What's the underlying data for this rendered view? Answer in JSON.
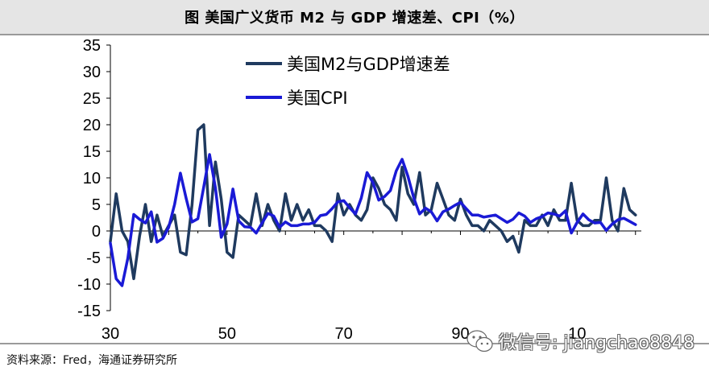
{
  "header": {
    "title": "图 美国广义货币 M2 与 GDP 增速差、CPI（%）"
  },
  "source": {
    "text": "资料来源：Fred，海通证券研究所"
  },
  "watermark": {
    "text": "微信号: jiangchao8848",
    "icon": "wechat-icon"
  },
  "colors": {
    "m2_gdp": "#1f3a5f",
    "cpi": "#1a1ad6",
    "axis": "#000000"
  },
  "chart_data": {
    "type": "line",
    "title": "图 美国广义货币 M2 与 GDP 增速差、CPI（%）",
    "xlabel": "",
    "ylabel": "",
    "xlim": [
      1930,
      2021
    ],
    "ylim": [
      -15,
      35
    ],
    "y_ticks": [
      -15,
      -10,
      -5,
      0,
      5,
      10,
      15,
      20,
      25,
      30,
      35
    ],
    "x_ticks": [
      {
        "value": 1930,
        "label": "30"
      },
      {
        "value": 1950,
        "label": "50"
      },
      {
        "value": 1970,
        "label": "70"
      },
      {
        "value": 1990,
        "label": "90"
      },
      {
        "value": 2010,
        "label": "10"
      }
    ],
    "legend_position": "top-left",
    "series": [
      {
        "name": "美国M2与GDP增速差",
        "color": "#1f3a5f",
        "x": [
          1930,
          1931,
          1932,
          1933,
          1934,
          1935,
          1936,
          1937,
          1938,
          1939,
          1940,
          1941,
          1942,
          1943,
          1944,
          1945,
          1946,
          1947,
          1948,
          1949,
          1950,
          1951,
          1952,
          1953,
          1954,
          1955,
          1956,
          1957,
          1958,
          1959,
          1960,
          1961,
          1962,
          1963,
          1964,
          1965,
          1966,
          1967,
          1968,
          1969,
          1970,
          1971,
          1972,
          1973,
          1974,
          1975,
          1976,
          1977,
          1978,
          1979,
          1980,
          1981,
          1982,
          1983,
          1984,
          1985,
          1986,
          1987,
          1988,
          1989,
          1990,
          1991,
          1992,
          1993,
          1994,
          1995,
          1996,
          1997,
          1998,
          1999,
          2000,
          2001,
          2002,
          2003,
          2004,
          2005,
          2006,
          2007,
          2008,
          2009,
          2010,
          2011,
          2012,
          2013,
          2014,
          2015,
          2016,
          2017,
          2018,
          2019,
          2020
        ],
        "values": [
          -2,
          7,
          0,
          -2,
          -9,
          -1,
          5,
          -2,
          3,
          -1,
          1,
          3,
          -4,
          -4.5,
          5,
          19,
          20,
          1,
          13,
          6,
          -4,
          -5,
          3,
          2,
          1,
          7,
          1,
          5,
          2,
          0,
          7,
          2,
          5,
          2,
          4,
          1,
          1,
          0,
          -2,
          7,
          3,
          5,
          3,
          2,
          4,
          10,
          8,
          5,
          4,
          2,
          12,
          7,
          5,
          11,
          3,
          4,
          9,
          6,
          3,
          2,
          6,
          3,
          1,
          1,
          0,
          2,
          1,
          0,
          -2,
          -1,
          -4,
          2,
          1,
          1,
          3,
          1,
          4,
          2,
          2,
          9,
          2,
          1,
          1,
          2,
          2,
          10,
          2,
          0,
          8,
          4,
          3
        ]
      },
      {
        "name": "美国CPI",
        "color": "#1a1ad6",
        "x": [
          1930,
          1931,
          1932,
          1933,
          1934,
          1935,
          1936,
          1937,
          1938,
          1939,
          1940,
          1941,
          1942,
          1943,
          1944,
          1945,
          1946,
          1947,
          1948,
          1949,
          1950,
          1951,
          1952,
          1953,
          1954,
          1955,
          1956,
          1957,
          1958,
          1959,
          1960,
          1961,
          1962,
          1963,
          1964,
          1965,
          1966,
          1967,
          1968,
          1969,
          1970,
          1971,
          1972,
          1973,
          1974,
          1975,
          1976,
          1977,
          1978,
          1979,
          1980,
          1981,
          1982,
          1983,
          1984,
          1985,
          1986,
          1987,
          1988,
          1989,
          1990,
          1991,
          1992,
          1993,
          1994,
          1995,
          1996,
          1997,
          1998,
          1999,
          2000,
          2001,
          2002,
          2003,
          2004,
          2005,
          2006,
          2007,
          2008,
          2009,
          2010,
          2011,
          2012,
          2013,
          2014,
          2015,
          2016,
          2017,
          2018,
          2019,
          2020
        ],
        "values": [
          -2.3,
          -9,
          -10.3,
          -5.1,
          3.1,
          2.2,
          1.5,
          3.6,
          -2.1,
          -1.4,
          0.7,
          5,
          10.9,
          6.1,
          1.7,
          2.3,
          8.3,
          14.4,
          8.1,
          -1.2,
          1.3,
          7.9,
          1.9,
          0.8,
          0.7,
          -0.4,
          1.5,
          3.3,
          2.8,
          0.7,
          1.7,
          1,
          1,
          1.3,
          1.3,
          1.6,
          2.9,
          3.1,
          4.2,
          5.5,
          5.7,
          4.4,
          3.2,
          6.2,
          11,
          9.1,
          5.8,
          6.5,
          7.6,
          11.3,
          13.5,
          10.3,
          6.2,
          3.2,
          4.3,
          3.6,
          1.9,
          3.6,
          4.1,
          4.8,
          5.4,
          4.2,
          3,
          3,
          2.6,
          2.8,
          3,
          2.3,
          1.6,
          2.2,
          3.4,
          2.8,
          1.6,
          2.3,
          2.7,
          3.4,
          3.2,
          2.8,
          3.8,
          -0.4,
          1.6,
          3.2,
          2.1,
          1.5,
          1.6,
          0.1,
          1.3,
          2.1,
          2.4,
          1.8,
          1.2
        ]
      }
    ]
  }
}
